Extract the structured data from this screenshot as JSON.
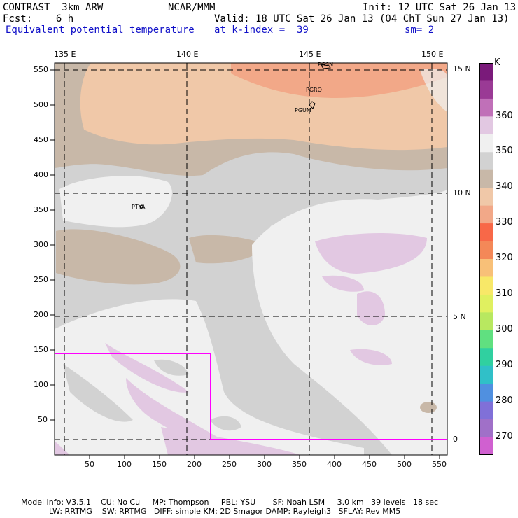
{
  "header": {
    "left1": "CONTRAST  3km ARW",
    "center1": "NCAR/MMM",
    "right1": "Init: 12 UTC Sat 26 Jan 13",
    "left2": "Fcst:    6 h",
    "right2": "Valid: 18 UTC Sat 26 Jan 13 (04 ChT Sun 27 Jan 13)",
    "field": "Equivalent potential temperature",
    "level": "at k-index =  39",
    "smooth": "sm= 2"
  },
  "map": {
    "lon_labels": [
      "135 E",
      "140 E",
      "145 E",
      "150 E"
    ],
    "lat_labels": [
      "15 N",
      "10 N",
      "5 N",
      "0"
    ],
    "y_ticks": [
      "550",
      "500",
      "450",
      "400",
      "350",
      "300",
      "250",
      "200",
      "150",
      "100",
      "50"
    ],
    "x_ticks": [
      "50",
      "100",
      "150",
      "200",
      "250",
      "300",
      "350",
      "400",
      "450",
      "500",
      "550"
    ],
    "stations": [
      "PGSN",
      "PGRO",
      "PGUM",
      "PTYA"
    ]
  },
  "colorbar": {
    "unit": "K",
    "labels": [
      "360",
      "350",
      "340",
      "330",
      "320",
      "310",
      "300",
      "290",
      "280",
      "270"
    ],
    "colors": [
      "#7a1a7a",
      "#9a3a95",
      "#c070b8",
      "#e2c8e2",
      "#f0f0f0",
      "#d2d2d2",
      "#c8b8a8",
      "#f0c8a8",
      "#f2a888",
      "#f86848",
      "#f48858",
      "#f8c078",
      "#f8e868",
      "#e0f060",
      "#b8e860",
      "#60e080",
      "#30d0a0",
      "#30c0c8",
      "#5090e0",
      "#8070d8",
      "#a070c8",
      "#d060d0"
    ]
  },
  "footer": {
    "line1": "Model Info: V3.5.1    CU: No Cu     MP: Thompson     PBL: YSU       SF: Noah LSM     3.0 km   39 levels   18 sec",
    "line2": "LW: RRTMG    SW: RRTMG   DIFF: simple KM: 2D Smagor DAMP: Rayleigh3   SFLAY: Rev MM5"
  }
}
